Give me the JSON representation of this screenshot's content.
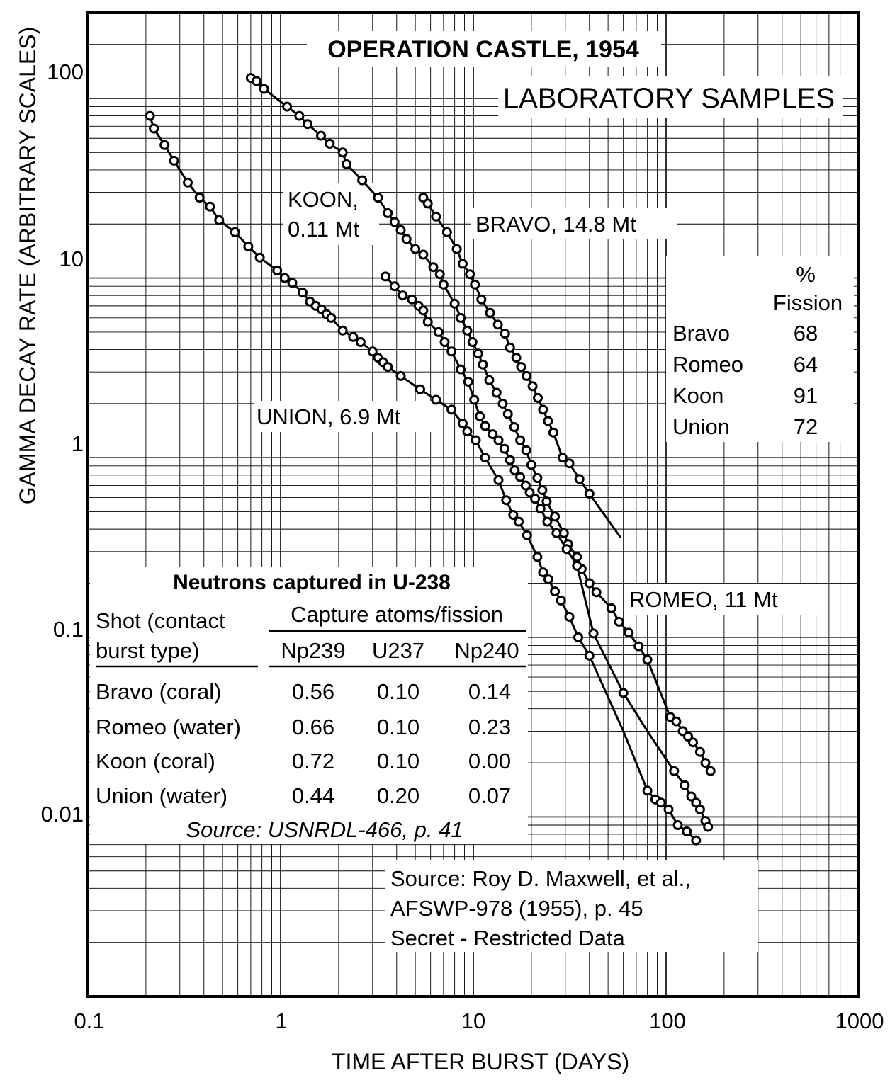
{
  "chart_data": {
    "type": "line",
    "title": "OPERATION CASTLE, 1954",
    "subtitle": "LABORATORY SAMPLES",
    "xlabel": "TIME AFTER BURST (DAYS)",
    "ylabel": "GAMMA DECAY RATE  (ARBITRARY SCALES)",
    "x_scale": "log",
    "y_scale": "log",
    "xlim": [
      0.1,
      1000
    ],
    "ylim": [
      0.001,
      300
    ],
    "grid": true,
    "x_ticks": [
      {
        "value": 0.1,
        "label": "0.1"
      },
      {
        "value": 1,
        "label": "1"
      },
      {
        "value": 10,
        "label": "10"
      },
      {
        "value": 100,
        "label": "100"
      },
      {
        "value": 1000,
        "label": "1000"
      }
    ],
    "y_ticks": [
      {
        "value": 100,
        "label": "100"
      },
      {
        "value": 10,
        "label": "10"
      },
      {
        "value": 1,
        "label": "1"
      },
      {
        "value": 0.1,
        "label": "0.1"
      },
      {
        "value": 0.01,
        "label": "0.01"
      }
    ],
    "series": [
      {
        "name": "KOON, 0.11 Mt",
        "label_lines": [
          "KOON,",
          "0.11 Mt"
        ],
        "x": [
          0.7,
          0.75,
          0.82,
          1.08,
          1.25,
          1.38,
          1.62,
          1.8,
          2.1,
          2.2,
          2.65,
          3.2,
          3.6,
          3.9,
          4.2,
          4.5,
          5.0,
          5.5,
          6.2,
          6.7,
          7.0,
          8.0,
          8.6,
          9.3,
          9.9,
          10.6,
          11.2,
          12.1,
          13.2,
          14.2,
          15.1,
          16.3,
          17.5,
          18.8,
          20.0,
          21.5,
          22.8,
          24.0,
          26.5,
          29.5,
          31.0,
          34.5,
          36.5,
          40.0,
          43.5,
          52.0,
          57.0,
          64.0,
          72.0,
          80.0,
          105.0,
          113.0,
          122.0,
          130.0,
          138.0,
          150.0,
          160.0,
          170.0
        ],
        "y": [
          130,
          125,
          113,
          90,
          80,
          72,
          62,
          56,
          50,
          43,
          35,
          28,
          23,
          20.5,
          18.5,
          16.5,
          14.5,
          13.5,
          11.5,
          10.5,
          9.2,
          7.2,
          6.0,
          5.1,
          4.4,
          3.8,
          3.3,
          2.7,
          2.3,
          2.0,
          1.75,
          1.48,
          1.25,
          1.1,
          0.91,
          0.77,
          0.66,
          0.57,
          0.47,
          0.38,
          0.33,
          0.28,
          0.24,
          0.2,
          0.178,
          0.145,
          0.122,
          0.106,
          0.089,
          0.075,
          0.036,
          0.034,
          0.03,
          0.028,
          0.026,
          0.023,
          0.02,
          0.018
        ],
        "markers": [
          0.7,
          0.75,
          0.82,
          1.08,
          1.25,
          1.38,
          1.62,
          1.8,
          2.1,
          2.2,
          2.65,
          3.2,
          3.6,
          3.9,
          4.2,
          4.5,
          5.0,
          5.5,
          6.2,
          6.7,
          7.0,
          8.0,
          8.6,
          9.3,
          9.9,
          10.6,
          11.2,
          12.1,
          13.2,
          14.2,
          15.1,
          16.3,
          17.5,
          18.8,
          20.0,
          21.5,
          22.8,
          24.0,
          26.5,
          29.5,
          31.0,
          34.5,
          36.5,
          40.0,
          43.5,
          52.0,
          57.0,
          64.0,
          72.0,
          80.0,
          105.0,
          113.0,
          122.0,
          130.0,
          138.0,
          150.0,
          160.0,
          170.0
        ]
      },
      {
        "name": "BRAVO, 14.8 Mt",
        "label_lines": [
          "BRAVO, 14.8 Mt"
        ],
        "x": [
          5.5,
          5.8,
          6.4,
          7.3,
          8.2,
          8.8,
          9.6,
          10.2,
          11.0,
          12.2,
          13.4,
          14.6,
          15.5,
          16.7,
          17.7,
          18.9,
          20.3,
          21.6,
          23.0,
          24.4,
          26.0,
          29.0,
          31.5,
          35.5,
          40.0,
          58.0
        ],
        "y": [
          28,
          26,
          22,
          18,
          14.5,
          12,
          10.5,
          9.2,
          7.6,
          6.4,
          5.5,
          4.9,
          4.1,
          3.6,
          3.2,
          2.85,
          2.5,
          2.15,
          1.85,
          1.6,
          1.38,
          1.0,
          0.93,
          0.76,
          0.63,
          0.36
        ],
        "markers": [
          5.5,
          5.8,
          6.4,
          7.3,
          8.2,
          8.8,
          9.6,
          10.2,
          11.0,
          12.2,
          13.4,
          14.6,
          15.5,
          16.7,
          17.7,
          18.9,
          20.3,
          21.6,
          23.0,
          24.4,
          26.0,
          29.0,
          31.5,
          35.5,
          40.0
        ]
      },
      {
        "name": "ROMEO, 11 Mt",
        "label_lines": [
          "ROMEO, 11 Mt"
        ],
        "x": [
          3.5,
          3.9,
          4.3,
          4.8,
          5.2,
          5.5,
          5.8,
          6.6,
          7.1,
          7.7,
          8.6,
          9.4,
          10.1,
          10.8,
          11.5,
          12.6,
          13.5,
          14.5,
          15.5,
          16.4,
          17.5,
          18.7,
          19.6,
          20.9,
          22.3,
          24.2,
          27.0,
          30.5,
          34.5,
          42.0,
          60.0,
          80.0,
          110.0,
          125.0,
          135.0,
          143.0,
          150.0,
          160.0,
          165.0
        ],
        "y": [
          10.2,
          9,
          8,
          7.6,
          7.0,
          6.6,
          5.7,
          5.0,
          4.4,
          3.9,
          3.1,
          2.65,
          2.1,
          1.7,
          1.5,
          1.35,
          1.25,
          1.12,
          0.97,
          0.85,
          0.78,
          0.7,
          0.64,
          0.59,
          0.52,
          0.44,
          0.38,
          0.31,
          0.25,
          0.105,
          0.049,
          0.03,
          0.018,
          0.015,
          0.013,
          0.012,
          0.011,
          0.0095,
          0.0088
        ],
        "markers": [
          3.5,
          3.9,
          4.3,
          4.8,
          5.2,
          5.5,
          5.8,
          6.6,
          7.1,
          7.7,
          8.6,
          9.4,
          10.1,
          10.8,
          11.5,
          12.6,
          13.5,
          14.5,
          15.5,
          16.4,
          17.5,
          18.7,
          19.6,
          20.9,
          22.3,
          24.2,
          27.0,
          30.5,
          34.5,
          42.0,
          60.0,
          110.0,
          125.0,
          135.0,
          143.0,
          150.0,
          160.0,
          165.0
        ]
      },
      {
        "name": "UNION, 6.9 Mt",
        "label_lines": [
          "UNION, 6.9 Mt"
        ],
        "x": [
          0.21,
          0.22,
          0.25,
          0.28,
          0.33,
          0.38,
          0.43,
          0.48,
          0.58,
          0.68,
          0.78,
          0.96,
          1.05,
          1.15,
          1.3,
          1.42,
          1.52,
          1.63,
          1.73,
          1.83,
          2.1,
          2.38,
          2.6,
          3.0,
          3.2,
          3.4,
          3.6,
          4.2,
          5.3,
          6.4,
          7.7,
          8.8,
          9.3,
          10.3,
          11.5,
          13.5,
          14.8,
          16.1,
          17.2,
          19.0,
          21.5,
          23.0,
          24.5,
          26.5,
          28.5,
          31.5,
          35.0,
          40.0,
          60.0,
          80.0,
          88.0,
          94.0,
          103.0,
          115.0,
          128.0,
          143.0
        ],
        "y": [
          80,
          68,
          55,
          45,
          34,
          28,
          25,
          21,
          18,
          15,
          13,
          11,
          10,
          9.4,
          8.3,
          7.4,
          7.0,
          6.7,
          6.3,
          6.0,
          5.1,
          4.7,
          4.4,
          3.9,
          3.6,
          3.4,
          3.2,
          2.85,
          2.4,
          2.1,
          1.85,
          1.55,
          1.4,
          1.25,
          1.0,
          0.75,
          0.58,
          0.48,
          0.44,
          0.37,
          0.28,
          0.23,
          0.21,
          0.18,
          0.16,
          0.13,
          0.1,
          0.079,
          0.03,
          0.014,
          0.0125,
          0.012,
          0.011,
          0.009,
          0.0083,
          0.0074
        ],
        "markers": [
          0.21,
          0.22,
          0.25,
          0.28,
          0.33,
          0.38,
          0.43,
          0.48,
          0.58,
          0.68,
          0.78,
          0.96,
          1.05,
          1.15,
          1.3,
          1.42,
          1.52,
          1.63,
          1.73,
          1.83,
          2.1,
          2.38,
          2.6,
          3.0,
          3.2,
          3.4,
          3.6,
          4.2,
          5.3,
          6.4,
          7.7,
          8.8,
          9.3,
          10.3,
          11.5,
          13.5,
          14.8,
          16.1,
          17.2,
          19.0,
          21.5,
          23.0,
          24.5,
          26.5,
          28.5,
          31.5,
          35.0,
          40.0,
          80.0,
          88.0,
          94.0,
          103.0,
          115.0,
          128.0,
          143.0
        ]
      }
    ],
    "fission_table": {
      "header": [
        "%",
        "Fission"
      ],
      "rows": [
        {
          "shot": "Bravo",
          "value": "68"
        },
        {
          "shot": "Romeo",
          "value": "64"
        },
        {
          "shot": "Koon",
          "value": "91"
        },
        {
          "shot": "Union",
          "value": "72"
        }
      ]
    },
    "capture_table": {
      "title": "Neutrons captured in U-238",
      "stub_header": [
        "Shot (contact",
        "burst type)"
      ],
      "group_header": "Capture atoms/fission",
      "columns": [
        "Np239",
        "U237",
        "Np240"
      ],
      "rows": [
        {
          "shot": "Bravo (coral)",
          "values": [
            "0.56",
            "0.10",
            "0.14"
          ]
        },
        {
          "shot": "Romeo (water)",
          "values": [
            "0.66",
            "0.10",
            "0.23"
          ]
        },
        {
          "shot": "Koon (coral)",
          "values": [
            "0.72",
            "0.10",
            "0.00"
          ]
        },
        {
          "shot": "Union (water)",
          "values": [
            "0.44",
            "0.20",
            "0.07"
          ]
        }
      ],
      "source": "Source: USNRDL-466, p. 41"
    },
    "source_note": [
      "Source: Roy D. Maxwell, et al.,",
      "AFSWP-978 (1955), p. 45",
      "Secret - Restricted Data"
    ]
  }
}
